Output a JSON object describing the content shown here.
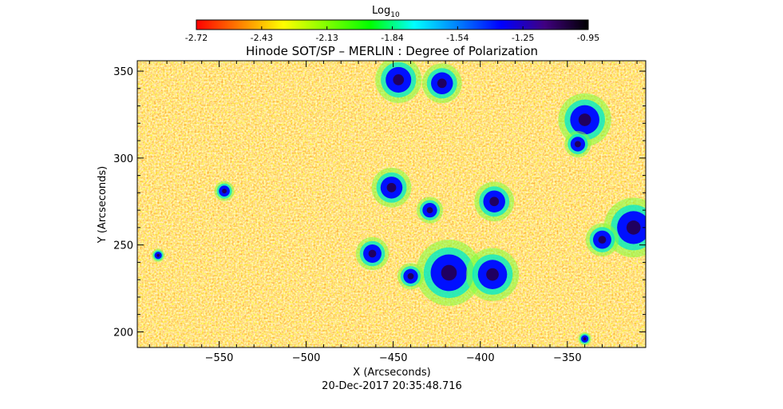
{
  "chart_data": {
    "type": "heatmap",
    "title": "Hinode SOT/SP – MERLIN : Degree of Polarization",
    "xlabel": "X (Arcseconds)",
    "ylabel": "Y (Arcseconds)",
    "timestamp": "20-Dec-2017 20:35:48.716",
    "colorbar": {
      "label_base": "Log",
      "label_sub": "10",
      "range": [
        -2.72,
        -0.95
      ],
      "ticks": [
        "-2.72",
        "-2.43",
        "-2.13",
        "-1.84",
        "-1.54",
        "-1.25",
        "-0.95"
      ],
      "colors": [
        "#ff0000",
        "#ff8000",
        "#ffff00",
        "#80ff00",
        "#00ff00",
        "#00ffff",
        "#0080ff",
        "#0000ff",
        "#400080",
        "#000000"
      ]
    },
    "xlim": [
      -597,
      -305
    ],
    "ylim": [
      191,
      356
    ],
    "xticks": [
      -550,
      -500,
      -450,
      -400,
      -350
    ],
    "yticks": [
      200,
      250,
      300,
      350
    ],
    "grid": false,
    "features": [
      {
        "x": -447,
        "y": 345,
        "r": 7
      },
      {
        "x": -422,
        "y": 343,
        "r": 6
      },
      {
        "x": -340,
        "y": 322,
        "r": 8
      },
      {
        "x": -344,
        "y": 308,
        "r": 4
      },
      {
        "x": -451,
        "y": 283,
        "r": 6
      },
      {
        "x": -429,
        "y": 270,
        "r": 4
      },
      {
        "x": -392,
        "y": 275,
        "r": 6
      },
      {
        "x": -312,
        "y": 260,
        "r": 9
      },
      {
        "x": -330,
        "y": 253,
        "r": 5
      },
      {
        "x": -462,
        "y": 245,
        "r": 5
      },
      {
        "x": -418,
        "y": 234,
        "r": 10
      },
      {
        "x": -393,
        "y": 233,
        "r": 8
      },
      {
        "x": -440,
        "y": 232,
        "r": 4
      },
      {
        "x": -547,
        "y": 281,
        "r": 3
      },
      {
        "x": -585,
        "y": 244,
        "r": 2
      },
      {
        "x": -340,
        "y": 196,
        "r": 2
      }
    ]
  }
}
